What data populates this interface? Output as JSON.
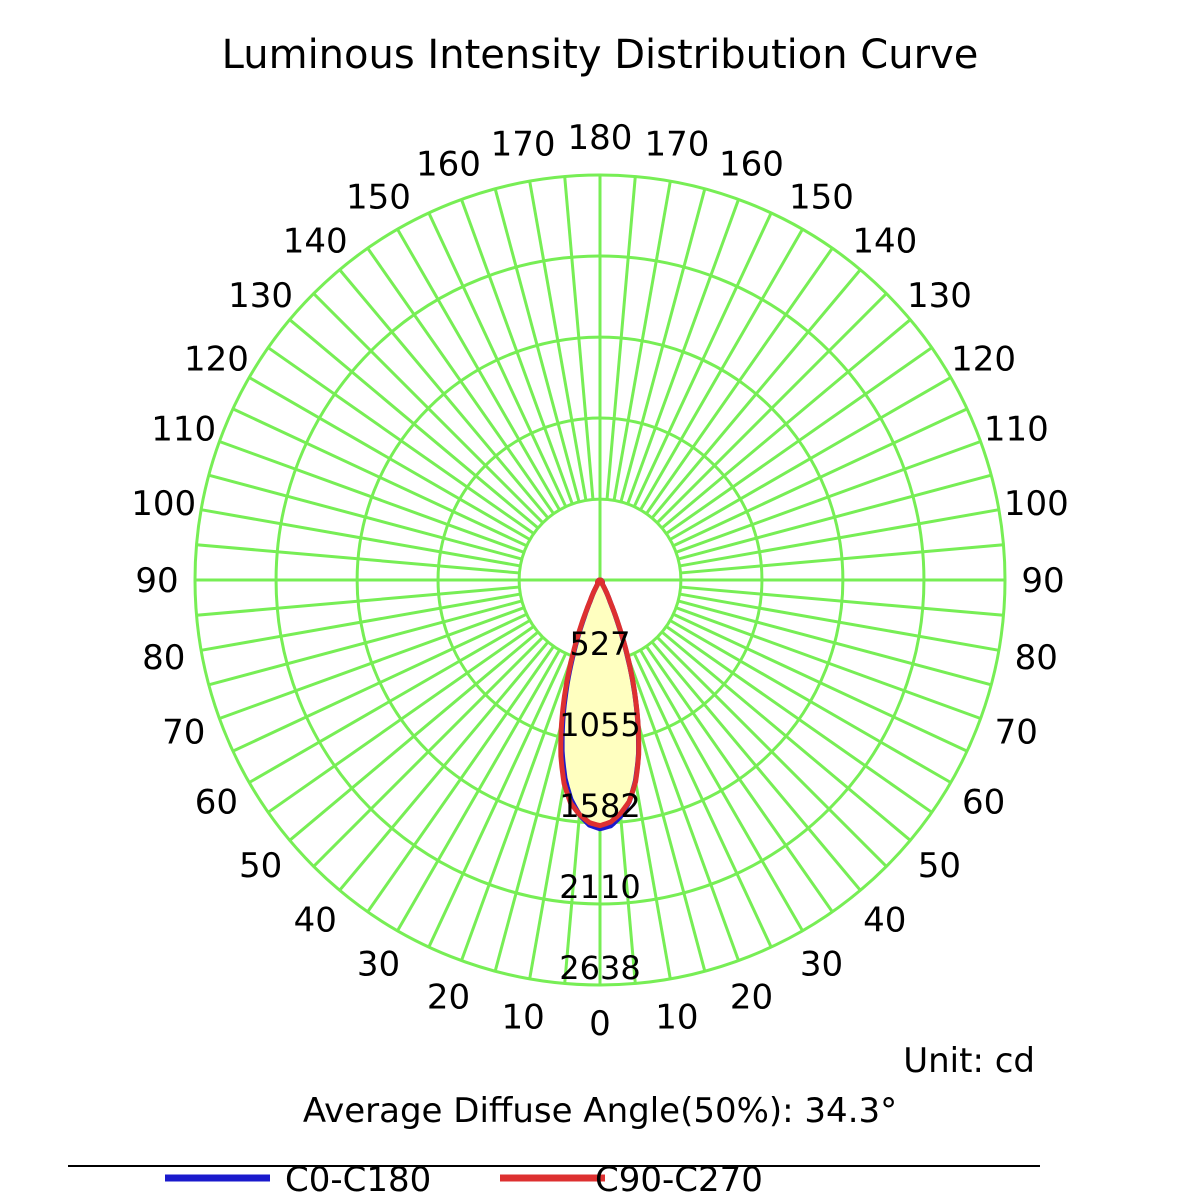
{
  "chart_data": {
    "type": "polar",
    "title": "Luminous Intensity Distribution Curve",
    "unit_label": "Unit: cd",
    "average_angle_label": "Average Diffuse Angle(50%): 34.3°",
    "radial_max": 2638,
    "radial_ticks": [
      527,
      1055,
      1582,
      2110,
      2638
    ],
    "angle_labels": {
      "left": [
        0,
        10,
        20,
        30,
        40,
        50,
        60,
        70,
        80,
        90,
        100,
        110,
        120,
        130,
        140,
        150,
        160,
        170,
        180
      ],
      "right": [
        10,
        20,
        30,
        40,
        50,
        60,
        70,
        80,
        90,
        100,
        110,
        120,
        130,
        140,
        150,
        160,
        170
      ]
    },
    "grid": true,
    "grid_color": "#77ee55",
    "fill_color": "#ffffc0",
    "legend_position": "bottom",
    "series": [
      {
        "name": "C0-C180",
        "color": "#1a1acc",
        "angles": [
          0,
          2.5,
          5,
          7.5,
          10,
          12.5,
          15,
          17.5,
          20,
          22.5,
          25,
          30,
          90
        ],
        "values": [
          1620,
          1600,
          1540,
          1450,
          1320,
          1150,
          940,
          720,
          500,
          300,
          150,
          30,
          0
        ]
      },
      {
        "name": "C90-C270",
        "color": "#dd3030",
        "angles": [
          0,
          2.5,
          5,
          7.5,
          10,
          12.5,
          15,
          17.5,
          20,
          22.5,
          25,
          30,
          90
        ],
        "values": [
          1600,
          1580,
          1530,
          1460,
          1340,
          1170,
          960,
          740,
          520,
          320,
          160,
          30,
          0
        ]
      }
    ]
  }
}
